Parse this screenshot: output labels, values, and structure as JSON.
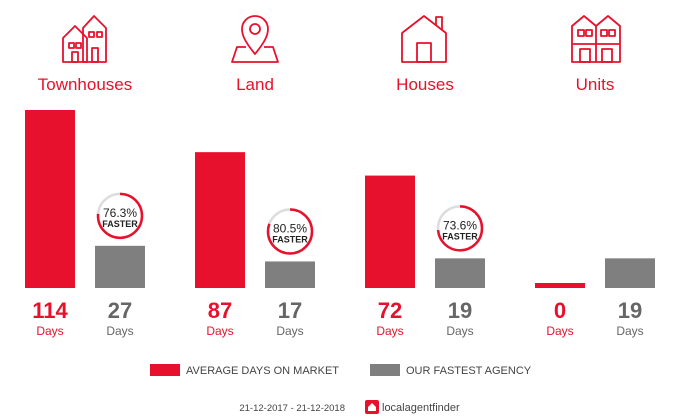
{
  "chart_data": {
    "type": "bar",
    "categories": [
      "Townhouses",
      "Land",
      "Houses",
      "Units"
    ],
    "series": [
      {
        "name": "AVERAGE DAYS ON MARKET",
        "values": [
          114,
          87,
          72,
          0
        ]
      },
      {
        "name": "OUR FASTEST AGENCY",
        "values": [
          27,
          17,
          19,
          19
        ]
      }
    ],
    "value_unit": "Days",
    "faster": [
      {
        "value": 76.3,
        "label": "76.3%",
        "word": "FASTER"
      },
      {
        "value": 80.5,
        "label": "80.5%",
        "word": "FASTER"
      },
      {
        "value": 73.6,
        "label": "73.6%",
        "word": "FASTER"
      },
      null
    ],
    "ylim": [
      0,
      114
    ],
    "grid": false,
    "legend_position": "bottom",
    "colors": {
      "primary": "#e8112d",
      "secondary": "#7f7f7f"
    },
    "category_icons": [
      "townhouses-icon",
      "land-pin-icon",
      "house-icon",
      "units-icon"
    ]
  },
  "footer": {
    "date_range": "21-12-2017 - 21-12-2018",
    "brand_part1": "local",
    "brand_part2": "agentfinder",
    "brand_icon": "local-agent-finder-logo-icon"
  }
}
